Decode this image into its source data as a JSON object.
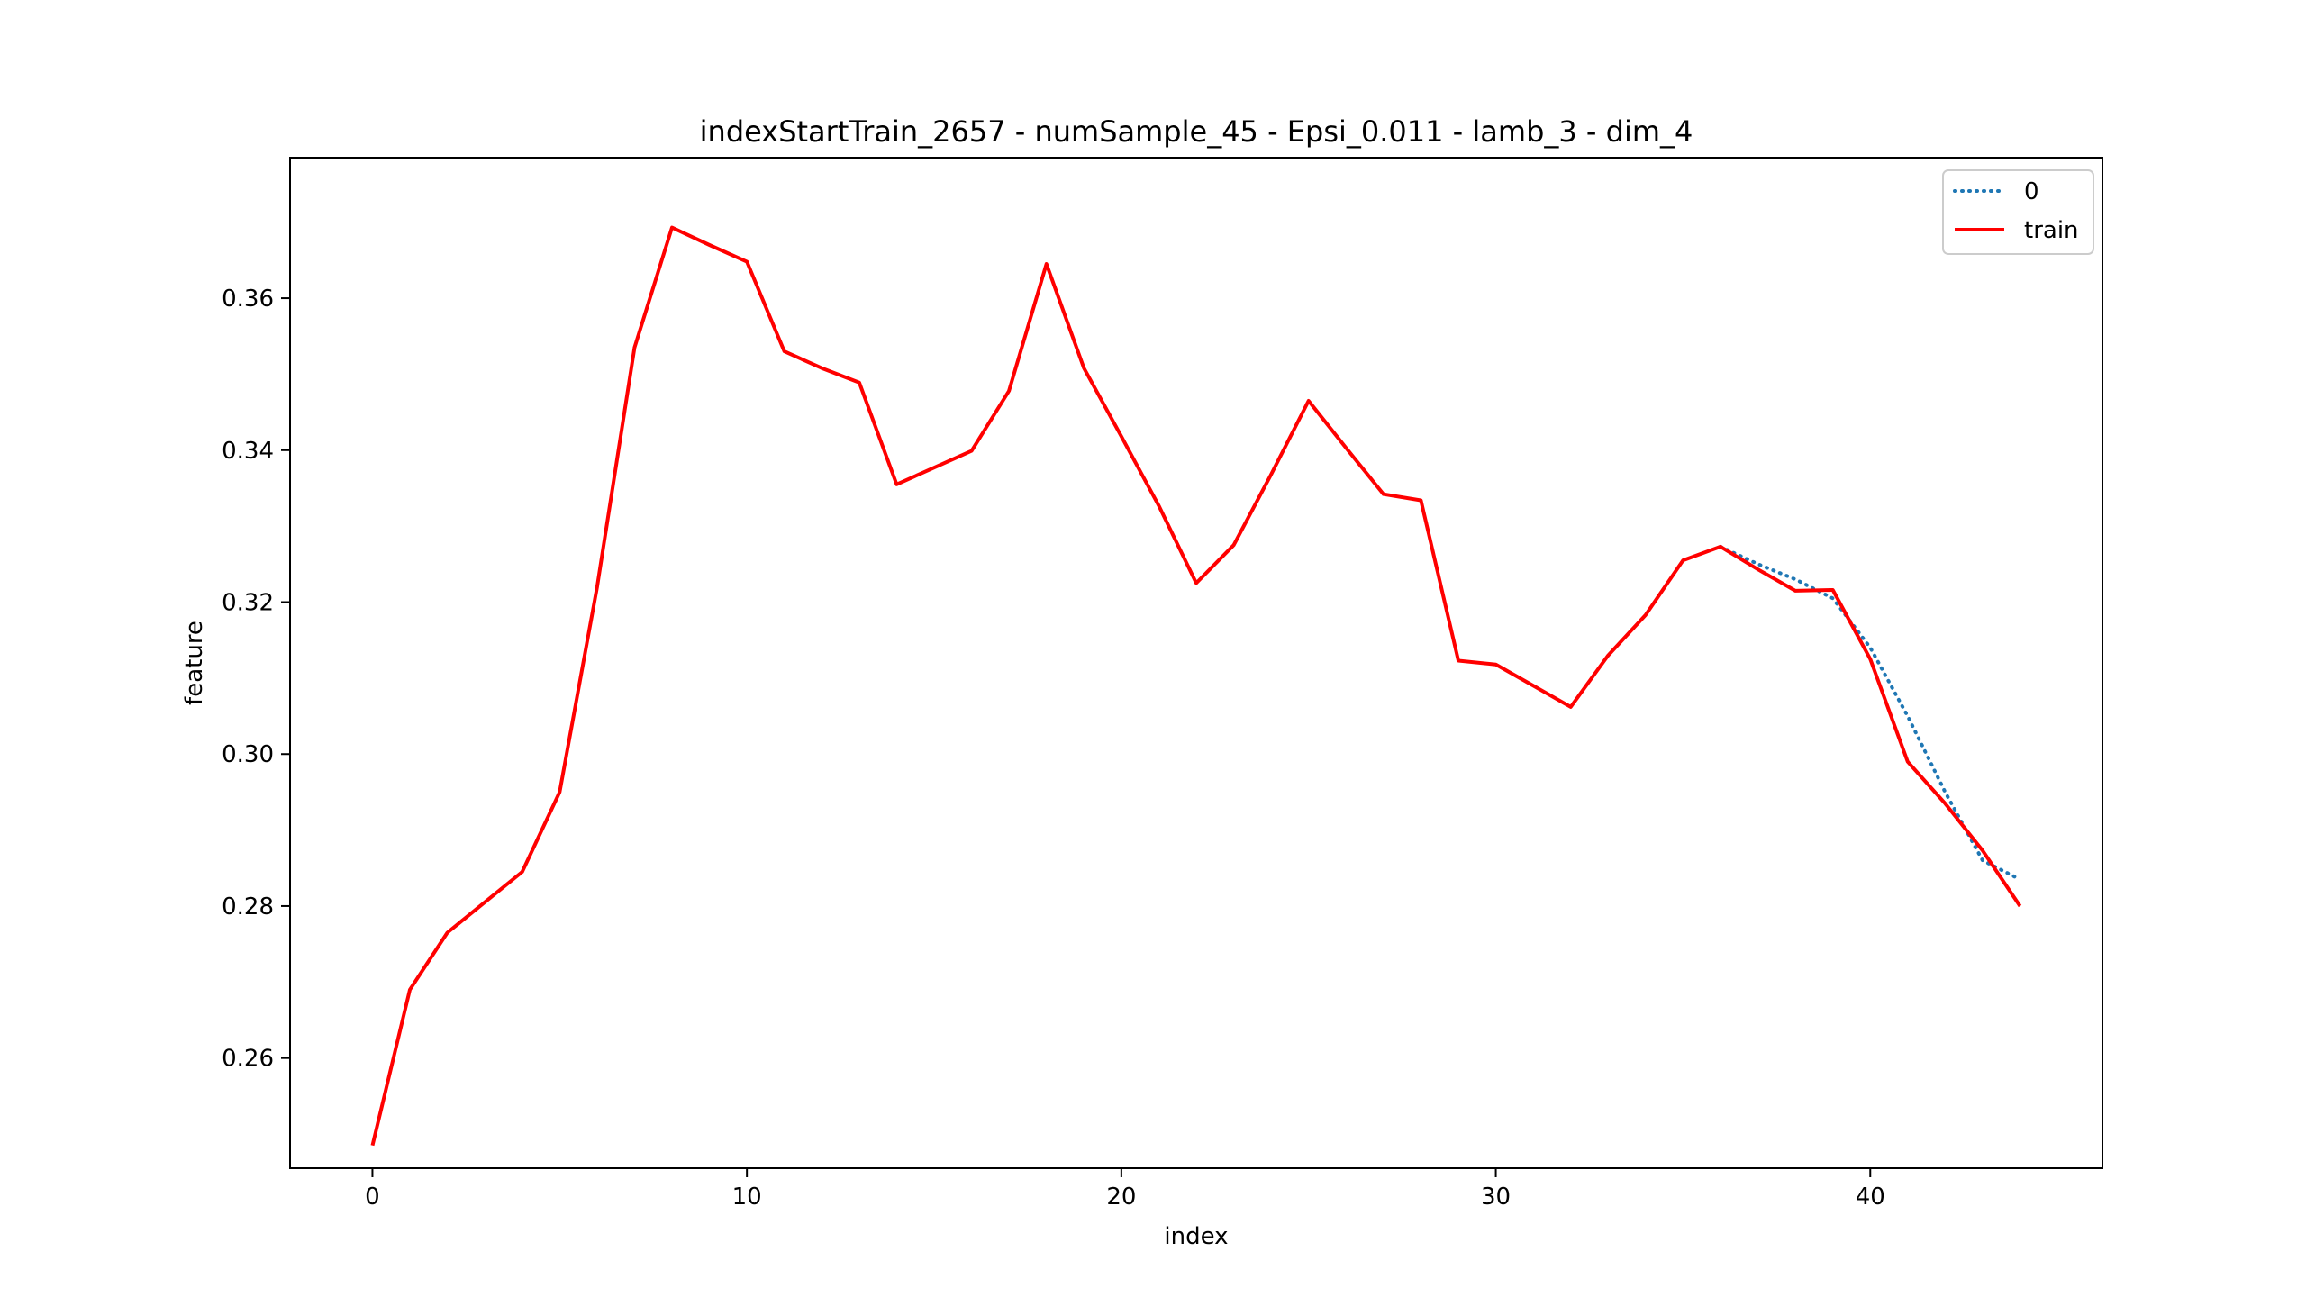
{
  "chart_data": {
    "type": "line",
    "title": "indexStartTrain_2657 - numSample_45 - Epsi_0.011 - lamb_3 - dim_4",
    "xlabel": "index",
    "ylabel": "feature",
    "xlim": [
      -2.2,
      46.2
    ],
    "ylim": [
      0.2455,
      0.3785
    ],
    "x_ticks": [
      0,
      10,
      20,
      30,
      40
    ],
    "y_ticks": [
      0.26,
      0.28,
      0.3,
      0.32,
      0.34,
      0.36
    ],
    "x_tick_labels": [
      "0",
      "10",
      "20",
      "30",
      "40"
    ],
    "y_tick_labels": [
      "0.26",
      "0.28",
      "0.30",
      "0.32",
      "0.34",
      "0.36"
    ],
    "legend_position": "top-right",
    "grid": false,
    "series": [
      {
        "name": "0",
        "color": "#1f77b4",
        "style": "dotted",
        "x": [
          36,
          37,
          38,
          39,
          40,
          41,
          42,
          43,
          44
        ],
        "y": [
          0.3273,
          0.325,
          0.323,
          0.3205,
          0.314,
          0.305,
          0.295,
          0.286,
          0.2835
        ]
      },
      {
        "name": "train",
        "color": "#ff0000",
        "style": "solid",
        "x": [
          0,
          1,
          2,
          3,
          4,
          5,
          6,
          7,
          8,
          9,
          10,
          11,
          12,
          13,
          14,
          15,
          16,
          17,
          18,
          19,
          20,
          21,
          22,
          23,
          24,
          25,
          26,
          27,
          28,
          29,
          30,
          31,
          32,
          33,
          34,
          35,
          36,
          37,
          38,
          39,
          40,
          41,
          42,
          43,
          44
        ],
        "y": [
          0.2485,
          0.269,
          0.2765,
          0.2805,
          0.2845,
          0.295,
          0.322,
          0.3535,
          0.3693,
          0.367,
          0.3648,
          0.353,
          0.3508,
          0.3489,
          0.3355,
          0.3377,
          0.3399,
          0.3478,
          0.3645,
          0.3508,
          0.3418,
          0.3327,
          0.3225,
          0.3275,
          0.3368,
          0.3465,
          0.3403,
          0.3342,
          0.3334,
          0.3123,
          0.3118,
          0.309,
          0.3062,
          0.313,
          0.3183,
          0.3255,
          0.3273,
          0.3243,
          0.3215,
          0.3216,
          0.3125,
          0.299,
          0.2935,
          0.2873,
          0.28
        ]
      }
    ]
  }
}
